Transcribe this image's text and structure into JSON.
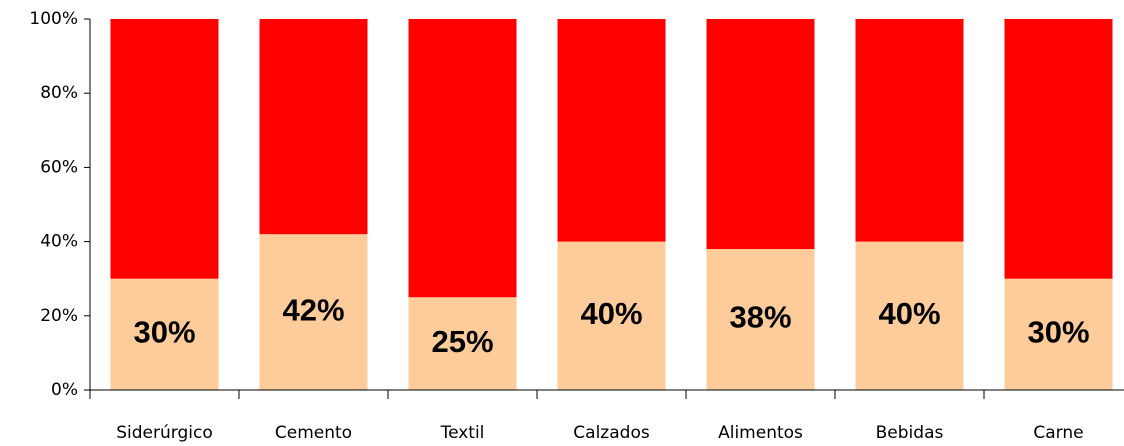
{
  "chart_data": {
    "type": "stacked_bar",
    "categories": [
      "Siderúrgico",
      "Cemento",
      "Textil",
      "Calzados",
      "Alimentos",
      "Bebidas",
      "Carne"
    ],
    "series": [
      {
        "color": "#fdcc9a",
        "values": [
          30,
          42,
          25,
          40,
          38,
          40,
          30
        ],
        "value_labels": [
          "30%",
          "42%",
          "25%",
          "40%",
          "38%",
          "40%",
          "30%"
        ]
      },
      {
        "color": "#ff0000",
        "values": [
          70,
          58,
          75,
          60,
          62,
          60,
          70
        ]
      }
    ],
    "ylim": [
      0,
      100
    ],
    "yticks": [
      {
        "value": 0,
        "label": "0%"
      },
      {
        "value": 20,
        "label": "20%"
      },
      {
        "value": 40,
        "label": "40%"
      },
      {
        "value": 60,
        "label": "60%"
      },
      {
        "value": 80,
        "label": "80%"
      },
      {
        "value": 100,
        "label": "100%"
      }
    ],
    "grid": false
  }
}
